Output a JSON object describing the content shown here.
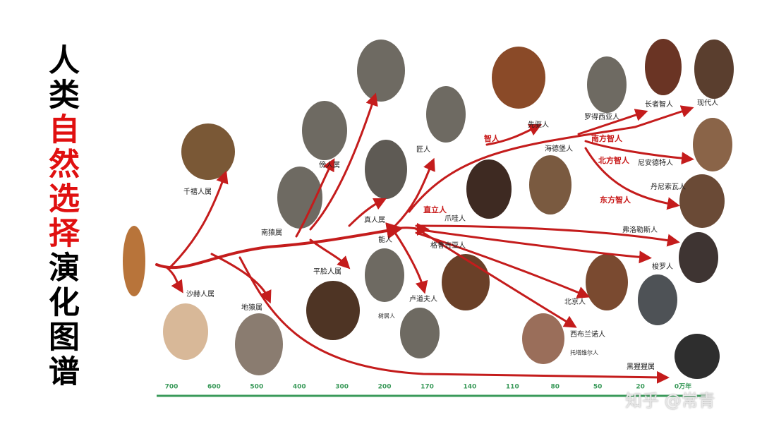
{
  "title": [
    "人类",
    "自然选择",
    "演化图谱"
  ],
  "labels": [
    "千禧人属",
    "傍人属",
    "南猿属",
    "平脸人属",
    "沙赫人属",
    "地猿属",
    "真人属",
    "能人",
    "直立人",
    "爪哇人",
    "格鲁吉亚人",
    "卢道夫人",
    "树居人",
    "匠人",
    "智人",
    "先驱人",
    "海德堡人",
    "罗得西亚人",
    "长者智人",
    "现代人",
    "南方智人",
    "北方智人",
    "尼安德特人",
    "丹尼索瓦人",
    "东方智人",
    "弗洛勒斯人",
    "梭罗人",
    "北京人",
    "西布兰诺人",
    "托塔维尔人",
    "黑猩猩属"
  ],
  "timeline": [
    "700",
    "600",
    "500",
    "400",
    "300",
    "200",
    "170",
    "140",
    "110",
    "80",
    "50",
    "20",
    "0万年"
  ],
  "watermark": "知乎 @常青"
}
